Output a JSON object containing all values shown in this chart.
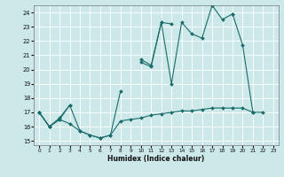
{
  "xlabel": "Humidex (Indice chaleur)",
  "bg_color": "#cce8e8",
  "line_color": "#1a6b6b",
  "grid_color": "#ffffff",
  "xlim": [
    -0.5,
    23.5
  ],
  "ylim": [
    14.7,
    24.5
  ],
  "xticks": [
    0,
    1,
    2,
    3,
    4,
    5,
    6,
    7,
    8,
    9,
    10,
    11,
    12,
    13,
    14,
    15,
    16,
    17,
    18,
    19,
    20,
    21,
    22,
    23
  ],
  "yticks": [
    15,
    16,
    17,
    18,
    19,
    20,
    21,
    22,
    23,
    24
  ],
  "series1_y": [
    17.0,
    16.0,
    16.5,
    17.5,
    15.7,
    15.4,
    15.2,
    15.4,
    18.5,
    null,
    20.7,
    20.3,
    23.3,
    19.0,
    23.3,
    22.5,
    22.2,
    24.5,
    23.5,
    23.9,
    21.7,
    17.0,
    17.0,
    null
  ],
  "series2_y": [
    17.0,
    16.0,
    16.6,
    17.5,
    null,
    null,
    null,
    null,
    null,
    null,
    20.5,
    20.2,
    23.3,
    23.2,
    null,
    null,
    null,
    24.5,
    null,
    23.9,
    null,
    null,
    null,
    null
  ],
  "series3_y": [
    17.0,
    16.0,
    16.5,
    16.2,
    15.7,
    15.4,
    15.2,
    15.4,
    16.4,
    16.5,
    16.6,
    16.8,
    16.9,
    17.0,
    17.1,
    17.1,
    17.2,
    17.3,
    17.3,
    17.3,
    17.3,
    17.0,
    null,
    null
  ]
}
